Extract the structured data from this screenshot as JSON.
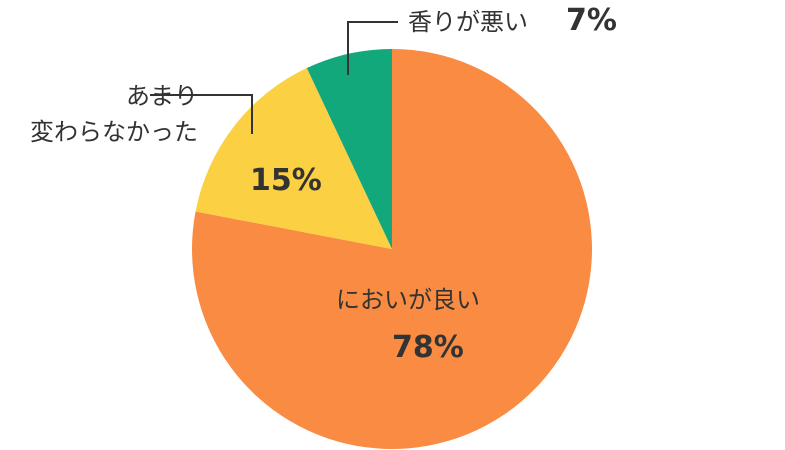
{
  "chart_data": {
    "type": "pie",
    "categories": [
      "においが良い",
      "あまり\n変わらなかった",
      "香りが悪い"
    ],
    "values": [
      78,
      15,
      7
    ],
    "value_labels": [
      "78%",
      "15%",
      "7%"
    ],
    "colors": [
      "#f98c42",
      "#fbd042",
      "#13a87c"
    ]
  }
}
